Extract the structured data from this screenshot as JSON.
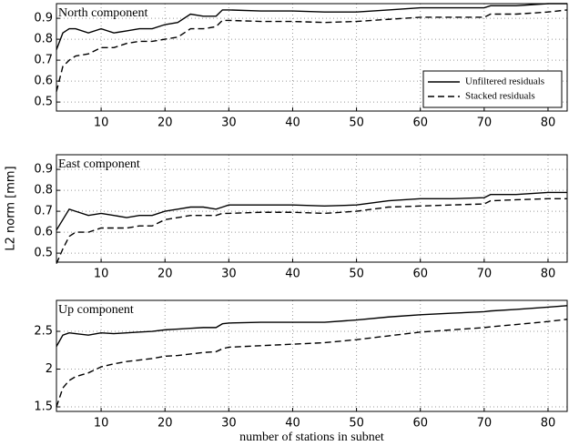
{
  "chart_data": [
    {
      "type": "line",
      "title": "North component",
      "x": [
        3,
        4,
        5,
        6,
        8,
        10,
        12,
        14,
        16,
        18,
        20,
        22,
        24,
        26,
        28,
        29,
        30,
        35,
        40,
        45,
        50,
        55,
        60,
        65,
        70,
        71,
        75,
        80,
        83
      ],
      "series": [
        {
          "name": "Unfiltered residuals",
          "color": "#000000",
          "linestyle": "solid",
          "values": [
            0.75,
            0.83,
            0.85,
            0.85,
            0.83,
            0.85,
            0.83,
            0.84,
            0.85,
            0.85,
            0.87,
            0.88,
            0.92,
            0.91,
            0.91,
            0.94,
            0.94,
            0.935,
            0.935,
            0.93,
            0.93,
            0.94,
            0.95,
            0.95,
            0.95,
            0.96,
            0.96,
            0.97,
            0.97
          ]
        },
        {
          "name": "Stacked residuals",
          "color": "#000000",
          "linestyle": "dashed",
          "values": [
            0.55,
            0.67,
            0.7,
            0.72,
            0.73,
            0.76,
            0.76,
            0.78,
            0.79,
            0.79,
            0.8,
            0.81,
            0.85,
            0.85,
            0.86,
            0.89,
            0.89,
            0.885,
            0.885,
            0.88,
            0.885,
            0.895,
            0.905,
            0.905,
            0.905,
            0.92,
            0.92,
            0.93,
            0.94
          ]
        }
      ],
      "xlim": [
        3,
        83
      ],
      "xticks": [
        10,
        20,
        30,
        40,
        50,
        60,
        70,
        80
      ],
      "ylim": [
        0.457,
        0.97
      ],
      "yticks": [
        0.5,
        0.6,
        0.7,
        0.8,
        0.9
      ],
      "grid": true,
      "legend": "lower right"
    },
    {
      "type": "line",
      "title": "East component",
      "ylabel": "L2 norm [mm]",
      "x": [
        3,
        4,
        5,
        6,
        8,
        10,
        12,
        14,
        16,
        18,
        20,
        22,
        24,
        26,
        28,
        29,
        30,
        35,
        40,
        45,
        50,
        55,
        60,
        65,
        70,
        71,
        75,
        80,
        83
      ],
      "series": [
        {
          "color": "#000000",
          "linestyle": "solid",
          "values": [
            0.61,
            0.66,
            0.71,
            0.7,
            0.68,
            0.69,
            0.68,
            0.67,
            0.68,
            0.68,
            0.7,
            0.71,
            0.72,
            0.72,
            0.71,
            0.72,
            0.73,
            0.73,
            0.73,
            0.725,
            0.73,
            0.75,
            0.76,
            0.76,
            0.765,
            0.78,
            0.78,
            0.79,
            0.79
          ]
        },
        {
          "color": "#000000",
          "linestyle": "dashed",
          "values": [
            0.45,
            0.52,
            0.58,
            0.6,
            0.6,
            0.62,
            0.62,
            0.62,
            0.63,
            0.63,
            0.66,
            0.67,
            0.68,
            0.68,
            0.68,
            0.69,
            0.69,
            0.695,
            0.695,
            0.69,
            0.7,
            0.72,
            0.725,
            0.73,
            0.735,
            0.75,
            0.755,
            0.76,
            0.76
          ]
        }
      ],
      "xlim": [
        3,
        83
      ],
      "xticks": [
        10,
        20,
        30,
        40,
        50,
        60,
        70,
        80
      ],
      "ylim": [
        0.457,
        0.97
      ],
      "yticks": [
        0.5,
        0.6,
        0.7,
        0.8,
        0.9
      ],
      "grid": true
    },
    {
      "type": "line",
      "title": "Up component",
      "xlabel": "number of stations in subnet",
      "x": [
        3,
        4,
        5,
        6,
        8,
        10,
        12,
        14,
        16,
        18,
        20,
        22,
        24,
        26,
        28,
        29,
        30,
        35,
        40,
        45,
        50,
        55,
        60,
        65,
        70,
        71,
        75,
        80,
        83
      ],
      "series": [
        {
          "color": "#000000",
          "linestyle": "solid",
          "values": [
            2.3,
            2.45,
            2.48,
            2.47,
            2.45,
            2.48,
            2.47,
            2.48,
            2.49,
            2.5,
            2.52,
            2.53,
            2.54,
            2.55,
            2.55,
            2.6,
            2.61,
            2.62,
            2.62,
            2.62,
            2.65,
            2.69,
            2.72,
            2.74,
            2.76,
            2.77,
            2.79,
            2.82,
            2.84
          ]
        },
        {
          "color": "#000000",
          "linestyle": "dashed",
          "values": [
            1.5,
            1.75,
            1.85,
            1.9,
            1.95,
            2.03,
            2.07,
            2.1,
            2.12,
            2.14,
            2.17,
            2.18,
            2.2,
            2.22,
            2.23,
            2.27,
            2.29,
            2.31,
            2.33,
            2.35,
            2.39,
            2.44,
            2.49,
            2.52,
            2.55,
            2.56,
            2.59,
            2.63,
            2.66
          ]
        }
      ],
      "xlim": [
        3,
        83
      ],
      "xticks": [
        10,
        20,
        30,
        40,
        50,
        60,
        70,
        80
      ],
      "ylim": [
        1.44,
        2.91
      ],
      "yticks": [
        1.5,
        2,
        2.5
      ],
      "grid": true
    }
  ]
}
